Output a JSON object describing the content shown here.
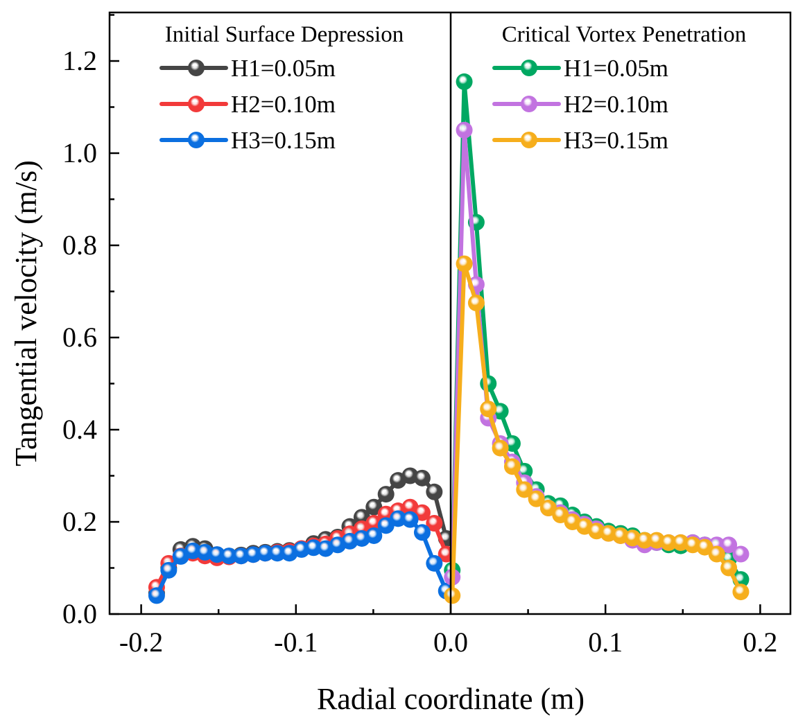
{
  "chart_data": {
    "type": "line",
    "xlabel": "Radial coordinate (m)",
    "ylabel": "Tangential velocity (m/s)",
    "xlim": [
      -0.225,
      0.215
    ],
    "ylim": [
      0,
      1.3
    ],
    "xticks": [
      -0.2,
      -0.1,
      0.0,
      0.1,
      0.2
    ],
    "xtick_labels": [
      "-0.2",
      "-0.1",
      "0.0",
      "0.1",
      "0.2"
    ],
    "yticks": [
      0,
      0.2,
      0.4,
      0.6,
      0.8,
      1.0,
      1.2
    ],
    "ytick_labels": [
      "0.0",
      "0.2",
      "0.4",
      "0.6",
      "0.8",
      "1.0",
      "1.2"
    ],
    "grid": false,
    "divider_x": 0.0,
    "groups": [
      {
        "title": "Initial Surface Depression",
        "legend_position": "top-left",
        "x_start": -0.19,
        "x_step": 0.0078,
        "series": [
          {
            "name": "H1=0.05m",
            "color": "#454545",
            "values": [
              0.045,
              0.1,
              0.14,
              0.147,
              0.142,
              0.129,
              0.126,
              0.128,
              0.132,
              0.134,
              0.136,
              0.138,
              0.142,
              0.153,
              0.162,
              0.167,
              0.19,
              0.21,
              0.232,
              0.26,
              0.29,
              0.3,
              0.295,
              0.265,
              0.164
            ]
          },
          {
            "name": "H2=0.10m",
            "color": "#f23a3a",
            "values": [
              0.058,
              0.11,
              0.126,
              0.132,
              0.126,
              0.122,
              0.124,
              0.126,
              0.129,
              0.132,
              0.134,
              0.136,
              0.142,
              0.148,
              0.152,
              0.164,
              0.174,
              0.185,
              0.197,
              0.217,
              0.224,
              0.232,
              0.22,
              0.197,
              0.13
            ]
          },
          {
            "name": "H3=0.15m",
            "color": "#0b6fe0",
            "values": [
              0.04,
              0.095,
              0.125,
              0.137,
              0.134,
              0.129,
              0.126,
              0.126,
              0.129,
              0.132,
              0.132,
              0.132,
              0.14,
              0.144,
              0.142,
              0.15,
              0.158,
              0.164,
              0.17,
              0.192,
              0.207,
              0.205,
              0.177,
              0.11,
              0.05
            ]
          }
        ]
      },
      {
        "title": "Critical Vortex Penetration",
        "legend_position": "top-right",
        "x_start": 0.001,
        "x_step": 0.00777,
        "series": [
          {
            "name": "H1=0.05m",
            "color": "#00a862",
            "values": [
              0.095,
              1.155,
              0.85,
              0.5,
              0.44,
              0.37,
              0.31,
              0.27,
              0.24,
              0.235,
              0.215,
              0.2,
              0.19,
              0.18,
              0.175,
              0.17,
              0.16,
              0.155,
              0.15,
              0.148,
              0.155,
              0.15,
              0.145,
              0.12,
              0.075
            ]
          },
          {
            "name": "H2=0.10m",
            "color": "#c273e0",
            "values": [
              0.08,
              1.05,
              0.715,
              0.425,
              0.37,
              0.33,
              0.285,
              0.255,
              0.23,
              0.22,
              0.205,
              0.195,
              0.185,
              0.175,
              0.17,
              0.16,
              0.15,
              0.155,
              0.155,
              0.155,
              0.155,
              0.15,
              0.15,
              0.15,
              0.13
            ]
          },
          {
            "name": "H3=0.15m",
            "color": "#f6ae1c",
            "values": [
              0.04,
              0.76,
              0.675,
              0.445,
              0.36,
              0.32,
              0.27,
              0.25,
              0.23,
              0.215,
              0.2,
              0.19,
              0.18,
              0.175,
              0.17,
              0.165,
              0.16,
              0.16,
              0.155,
              0.155,
              0.15,
              0.145,
              0.13,
              0.1,
              0.048
            ]
          }
        ]
      }
    ]
  }
}
